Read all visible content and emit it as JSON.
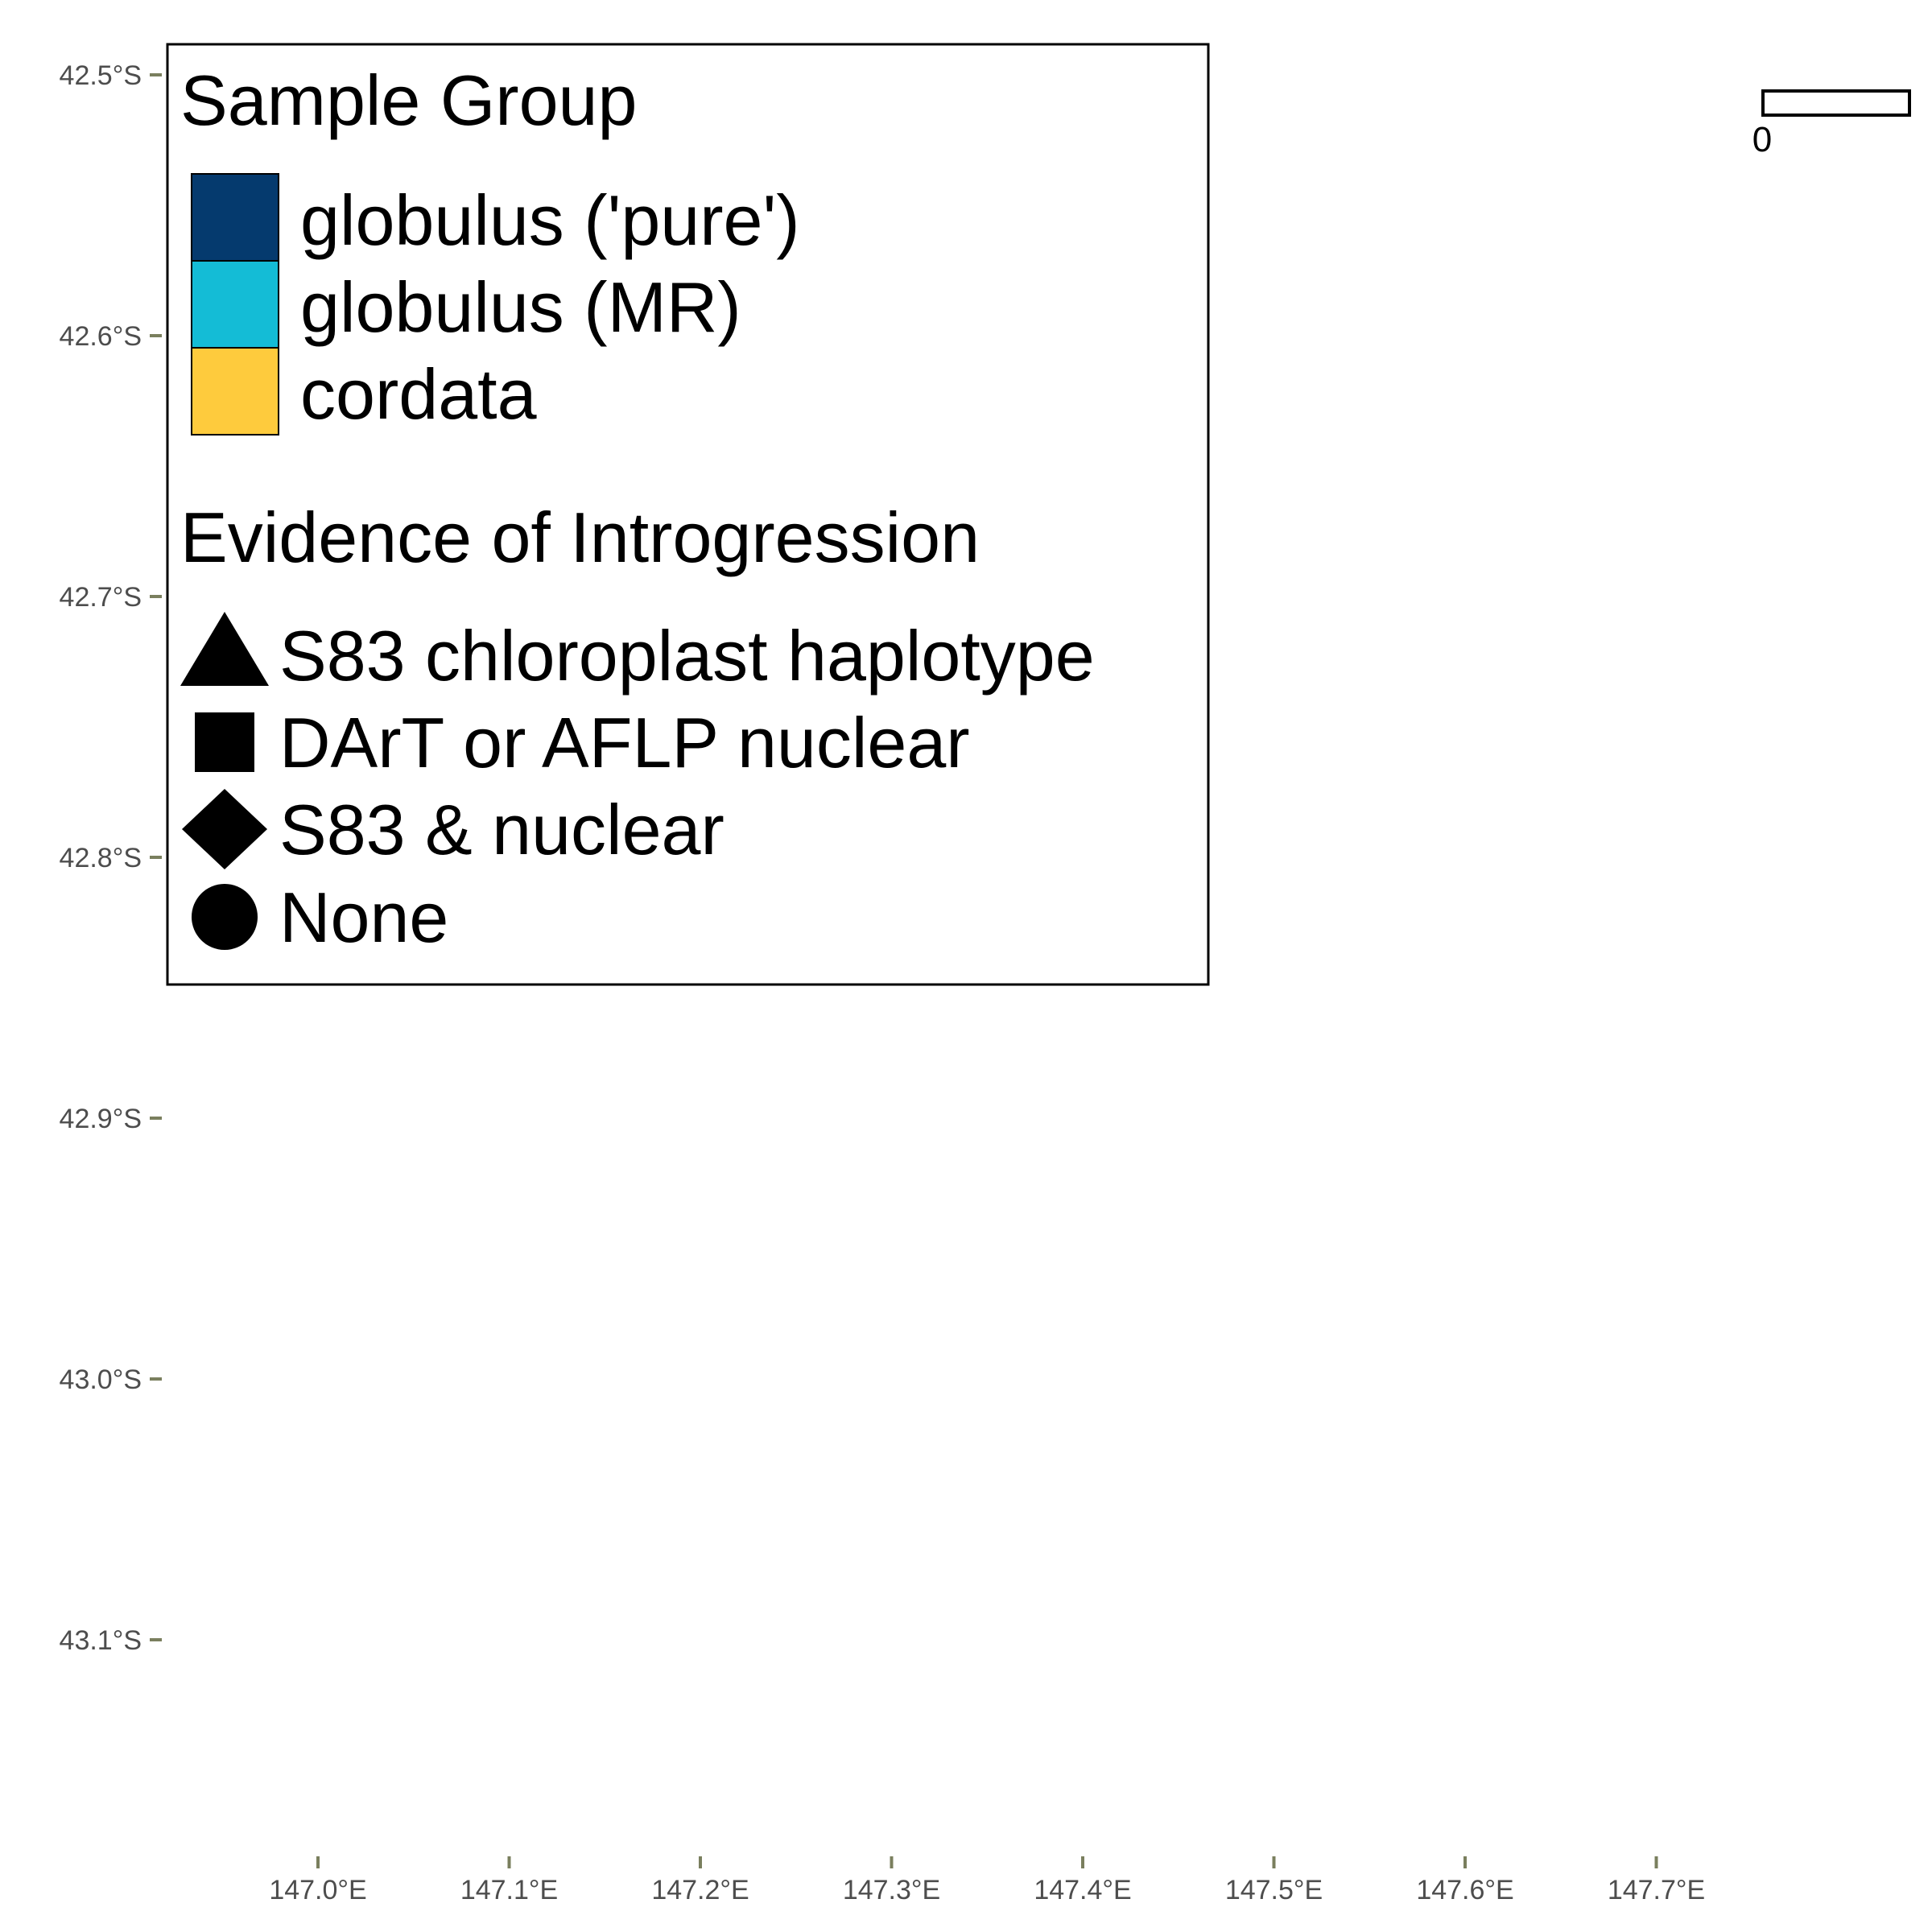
{
  "map": {
    "axis_color": "#7a7f5e",
    "lat_axis": {
      "ticks": [
        {
          "value": -42.5,
          "label": "42.5°S"
        },
        {
          "value": -42.6,
          "label": "42.6°S"
        },
        {
          "value": -42.7,
          "label": "42.7°S"
        },
        {
          "value": -42.8,
          "label": "42.8°S"
        },
        {
          "value": -42.9,
          "label": "42.9°S"
        },
        {
          "value": -43.0,
          "label": "43.0°S"
        },
        {
          "value": -43.1,
          "label": "43.1°S"
        }
      ]
    },
    "lon_axis": {
      "ticks": [
        {
          "value": 147.0,
          "label": "147.0°E"
        },
        {
          "value": 147.1,
          "label": "147.1°E"
        },
        {
          "value": 147.2,
          "label": "147.2°E"
        },
        {
          "value": 147.3,
          "label": "147.3°E"
        },
        {
          "value": 147.4,
          "label": "147.4°E"
        },
        {
          "value": 147.5,
          "label": "147.5°E"
        },
        {
          "value": 147.6,
          "label": "147.6°E"
        },
        {
          "value": 147.7,
          "label": "147.7°E"
        }
      ]
    },
    "scale_bar": {
      "label": "0"
    }
  },
  "legend": {
    "sample_group": {
      "title": "Sample Group",
      "items": [
        {
          "label": "globulus ('pure')",
          "color": "#053a6e"
        },
        {
          "label": "globulus (MR)",
          "color": "#14bcd6"
        },
        {
          "label": "cordata",
          "color": "#fecb3d"
        }
      ]
    },
    "introgression": {
      "title": "Evidence of Introgression",
      "items": [
        {
          "label": "S83 chloroplast haplotype",
          "shape": "triangle-icon"
        },
        {
          "label": "DArT or AFLP nuclear",
          "shape": "square-icon"
        },
        {
          "label": "S83 & nuclear",
          "shape": "diamond-icon"
        },
        {
          "label": "None",
          "shape": "circle-icon"
        }
      ]
    }
  }
}
